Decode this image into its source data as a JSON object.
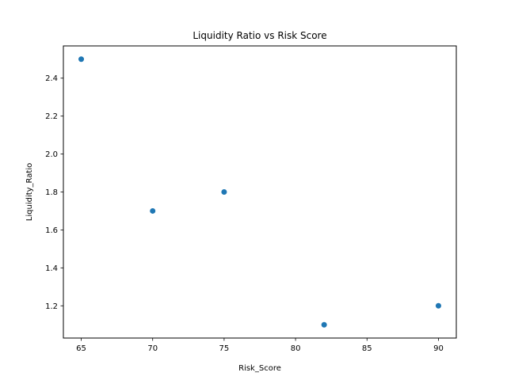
{
  "chart_data": {
    "type": "scatter",
    "title": "Liquidity Ratio vs Risk Score",
    "xlabel": "Risk_Score",
    "ylabel": "Liquidity_Ratio",
    "x": [
      65,
      70,
      75,
      82,
      90
    ],
    "y": [
      2.5,
      1.7,
      1.8,
      1.1,
      1.2
    ],
    "xlim": [
      63.75,
      91.25
    ],
    "ylim": [
      1.03,
      2.57
    ],
    "xticks": [
      65,
      70,
      75,
      80,
      85,
      90
    ],
    "yticks": [
      1.2,
      1.4,
      1.6,
      1.8,
      2.0,
      2.2,
      2.4
    ],
    "xtick_labels": [
      "65",
      "70",
      "75",
      "80",
      "85",
      "90"
    ],
    "ytick_labels": [
      "1.2",
      "1.4",
      "1.6",
      "1.8",
      "2.0",
      "2.2",
      "2.4"
    ],
    "grid": false,
    "legend": "none",
    "marker_color": "#1f77b4"
  }
}
